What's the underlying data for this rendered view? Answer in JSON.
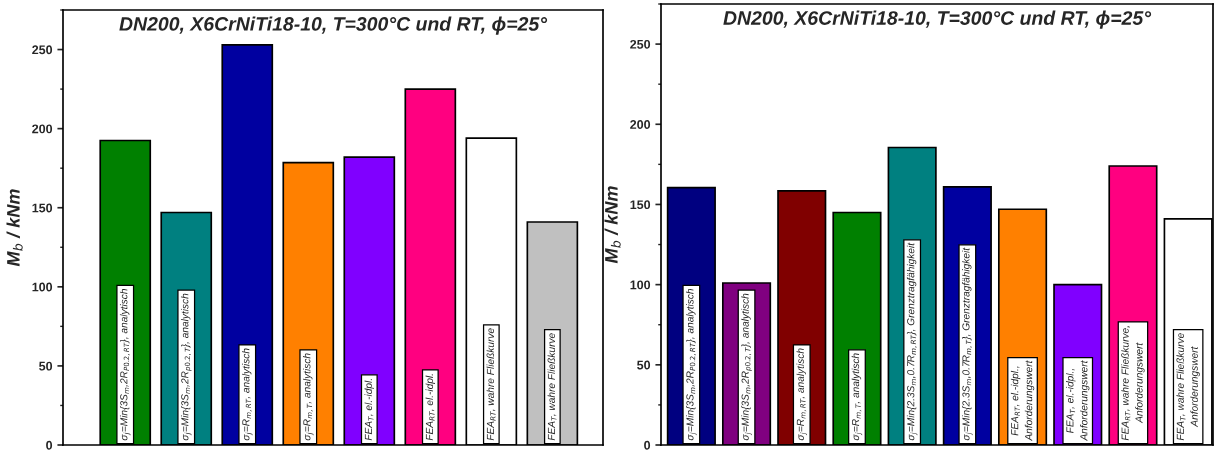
{
  "chart_data": [
    {
      "type": "bar",
      "title": "DN200, X6CrNiTi18-10, T=300°C und RT, ϕ=25°",
      "ylabel": "M$_{b}$ / kNm",
      "categories": [
        null,
        null,
        null,
        null,
        null,
        null,
        null,
        null
      ],
      "values": [
        192.5,
        147,
        253,
        178.5,
        182,
        225,
        194,
        141
      ],
      "colors": [
        "#008000",
        "#008080",
        "#0000a0",
        "#ff8000",
        "#8000ff",
        "#ff0080",
        "#ffffff",
        "#c0c0c0"
      ],
      "ylim": [
        0,
        275
      ],
      "yticks": [
        0,
        50,
        100,
        150,
        200,
        250
      ],
      "tick_labels": "y",
      "annotations": [
        "σ$_{j}$=Min{3S$_{m}$,2R$_{P0.2,RT}$}, analytisch",
        "σ$_{j}$=Min{3S$_{m}$,2R$_{p0.2,T}$}, analytisch",
        "σ$_{j}$=R$_{m,RT}$, analytisch",
        "σ$_{j}$=R$_{m,T}$, analytisch",
        "FEA$_{T}$, el.-idpl.",
        "FEA$_{RT}$, el.-idpl.",
        "FEA$_{RT}$, wahre Fließkurve",
        "FEA$_{T}$, wahre Fließkurve"
      ]
    },
    {
      "type": "bar",
      "title": "DN200, X6CrNiTi18-10, T=300°C und RT, ϕ=25°",
      "ylabel": "M$_{b}$ / kNm",
      "categories": [
        null,
        null,
        null,
        null,
        null,
        null,
        null,
        null,
        null,
        null
      ],
      "values": [
        160.5,
        101,
        158.5,
        145,
        185.5,
        161,
        147,
        100,
        174,
        141
      ],
      "colors": [
        "#000080",
        "#800080",
        "#800000",
        "#008000",
        "#008080",
        "#0000a0",
        "#ff8000",
        "#8000ff",
        "#ff0080",
        "#ffffff"
      ],
      "ylim": [
        0,
        275
      ],
      "yticks": [
        0,
        50,
        100,
        150,
        200,
        250
      ],
      "tick_labels": "y",
      "annotations": [
        "σ$_{j}$=Min{3S$_{m}$,2R$_{P0.2,RT}$}, analytisch",
        "σ$_{j}$=Min{3S$_{m}$,2R$_{p0.2,T}$}, analytisch",
        "σ$_{j}$=R$_{m,RT}$, analytisch",
        "σ$_{j}$=R$_{m,T}$, analytisch",
        "σ$_{j}$=Min{2.3S$_{m}$,0.7R$_{m,RT}$}, Grenztragfähigkeit",
        "σ$_{j}$=Min{2.3S$_{m}$,0.7R$_{m,T}$}, Grenztragfähigkeit",
        "FEA$_{RT}$, el.-idpl.,\nAnforderungswert",
        "FEA$_{T}$, el.-idpl.,\nAnforderungswert",
        "FEA$_{RT}$, wahre Fließkurve,\nAnforderungswert",
        "FEA$_{T}$, wahre Fließkurve\nAnforderungswert"
      ]
    }
  ]
}
